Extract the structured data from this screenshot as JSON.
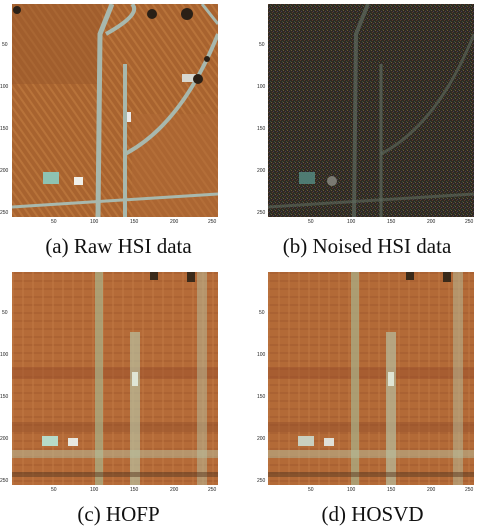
{
  "captions": {
    "a": "(a) Raw HSI data",
    "b": "(b) Noised HSI data",
    "c": "(c) HOFP",
    "d": "(d) HOSVD"
  },
  "y_ticks": [
    "50",
    "100",
    "150",
    "200",
    "250"
  ],
  "x_ticks": [
    "50",
    "100",
    "150",
    "200",
    "250"
  ],
  "colors": {
    "soil": "#a8632f",
    "soil_dark": "#7c4524",
    "road": "#9fb3a8",
    "noise_bg": "#2b2720",
    "recon_bg": "#b9703c",
    "recon_green": "#a9b38c"
  }
}
